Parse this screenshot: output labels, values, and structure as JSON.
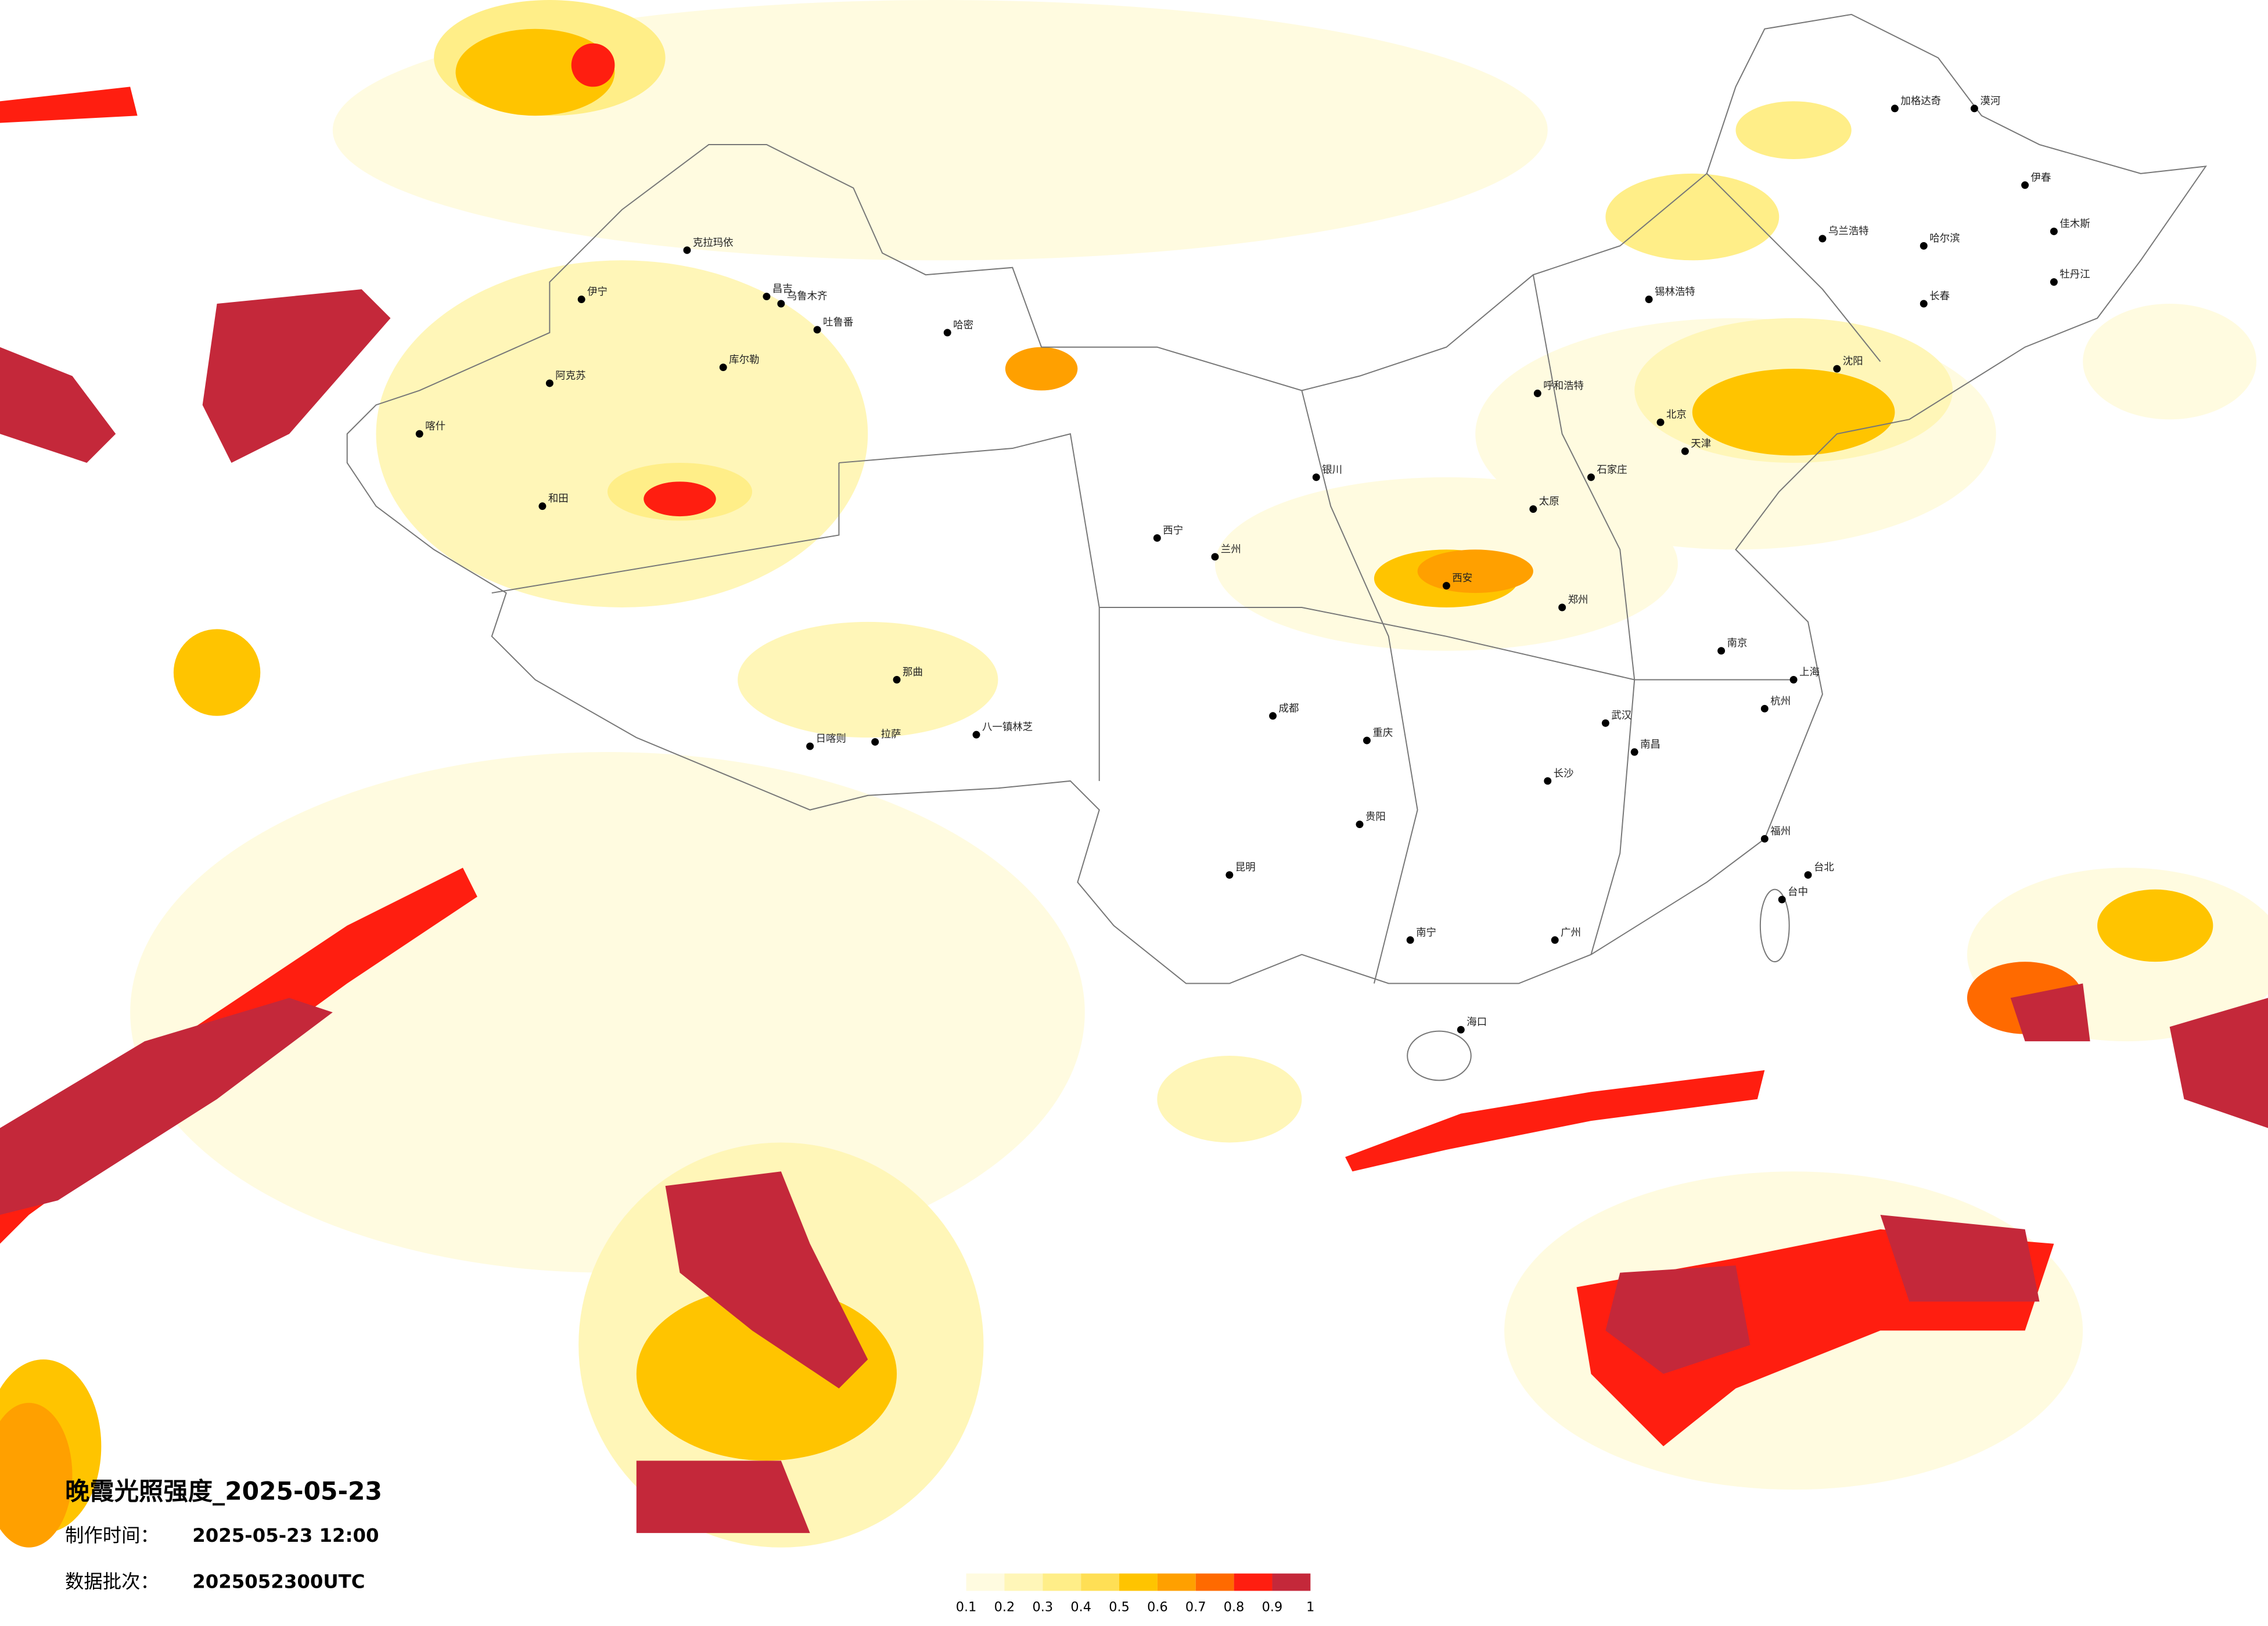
{
  "title": "晚霞光照强度_2025-05-23",
  "made_label": "制作时间：",
  "made_time": "2025-05-23 12:00",
  "batch_label": "数据批次：",
  "batch": "2025052300UTC",
  "colorbar": {
    "colors": [
      "#fffbe0",
      "#fff6b8",
      "#ffee88",
      "#ffdf55",
      "#ffc400",
      "#ffa000",
      "#ff6a00",
      "#ff1e10",
      "#c4283a"
    ],
    "ticks": [
      0.1,
      0.2,
      0.3,
      0.4,
      0.5,
      0.6,
      0.7,
      0.8,
      0.9,
      1
    ]
  },
  "cities": [
    "克拉玛依",
    "昌吉",
    "乌鲁木齐",
    "吐鲁番",
    "哈密",
    "伊宁",
    "阿克苏",
    "喀什",
    "和田",
    "库尔勒",
    "那曲",
    "拉萨",
    "日喀则",
    "八一镇林芝",
    "西宁",
    "兰州",
    "银川",
    "呼和浩特",
    "北京",
    "天津",
    "石家庄",
    "太原",
    "郑州",
    "西安",
    "武汉",
    "长沙",
    "南昌",
    "南京",
    "上海",
    "杭州",
    "福州",
    "广州",
    "南宁",
    "海口",
    "昆明",
    "贵阳",
    "成都",
    "重庆",
    "哈尔滨",
    "长春",
    "沈阳",
    "台北",
    "台中",
    "乌兰浩特",
    "锡林浩特",
    "伊春",
    "佳木斯",
    "牡丹江",
    "漠河",
    "加格达奇"
  ]
}
